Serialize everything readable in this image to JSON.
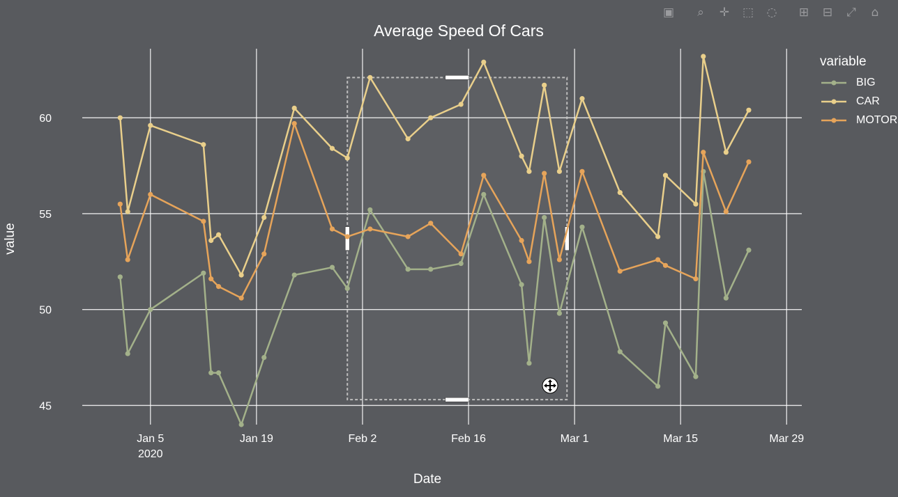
{
  "modebar": {
    "icons": [
      "camera-icon",
      "zoom-icon",
      "pan-icon",
      "box-select-icon",
      "lasso-select-icon",
      "zoom-in-icon",
      "zoom-out-icon",
      "autoscale-icon",
      "reset-axes-home-icon"
    ]
  },
  "colors": {
    "background": "#585a5e",
    "grid": "#ffffff",
    "BIG": "#a3b18a",
    "CAR": "#e9cf8b",
    "MOTOR": "#e6a45a"
  },
  "chart_data": {
    "type": "line",
    "title": "Average Speed Of Cars",
    "xlabel": "Date",
    "ylabel": "value",
    "legend_title": "variable",
    "legend_position": "top-right",
    "grid": true,
    "xlim": [
      "2019-12-27",
      "2020-03-31"
    ],
    "ylim": [
      44.0,
      63.6
    ],
    "x_ticks": [
      {
        "date": "2020-01-05",
        "label": "Jan 5",
        "sublabel": "2020"
      },
      {
        "date": "2020-01-19",
        "label": "Jan 19",
        "sublabel": ""
      },
      {
        "date": "2020-02-02",
        "label": "Feb 2",
        "sublabel": ""
      },
      {
        "date": "2020-02-16",
        "label": "Feb 16",
        "sublabel": ""
      },
      {
        "date": "2020-03-01",
        "label": "Mar 1",
        "sublabel": ""
      },
      {
        "date": "2020-03-15",
        "label": "Mar 15",
        "sublabel": ""
      },
      {
        "date": "2020-03-29",
        "label": "Mar 29",
        "sublabel": ""
      }
    ],
    "y_ticks": [
      45,
      50,
      55,
      60
    ],
    "x": [
      "2020-01-01",
      "2020-01-02",
      "2020-01-05",
      "2020-01-12",
      "2020-01-13",
      "2020-01-14",
      "2020-01-17",
      "2020-01-20",
      "2020-01-24",
      "2020-01-29",
      "2020-01-31",
      "2020-02-03",
      "2020-02-08",
      "2020-02-11",
      "2020-02-15",
      "2020-02-18",
      "2020-02-23",
      "2020-02-24",
      "2020-02-26",
      "2020-02-28",
      "2020-03-02",
      "2020-03-07",
      "2020-03-12",
      "2020-03-13",
      "2020-03-17",
      "2020-03-18",
      "2020-03-21",
      "2020-03-24",
      "2020-03-28"
    ],
    "series": [
      {
        "name": "BIG",
        "values": [
          51.7,
          47.7,
          50.0,
          51.9,
          46.7,
          46.7,
          44.0,
          47.5,
          51.8,
          52.2,
          51.1,
          55.2,
          52.1,
          52.1,
          52.4,
          56.0,
          51.3,
          47.2,
          54.8,
          49.8,
          54.3,
          47.8,
          46.0,
          49.3,
          46.5,
          57.2,
          50.6,
          53.1,
          null
        ]
      },
      {
        "name": "CAR",
        "values": [
          60.0,
          55.1,
          59.6,
          58.6,
          53.6,
          53.9,
          51.8,
          54.8,
          60.5,
          58.4,
          57.9,
          62.1,
          58.9,
          60.0,
          60.7,
          62.9,
          58.0,
          57.2,
          61.7,
          57.2,
          61.0,
          56.1,
          53.8,
          57.0,
          55.5,
          63.2,
          58.2,
          60.4,
          null
        ]
      },
      {
        "name": "MOTOR",
        "values": [
          55.5,
          52.6,
          56.0,
          54.6,
          51.6,
          51.2,
          50.6,
          52.9,
          59.7,
          54.2,
          53.8,
          54.2,
          53.8,
          54.5,
          52.9,
          57.0,
          53.6,
          52.5,
          57.1,
          52.6,
          57.2,
          52.0,
          52.6,
          52.3,
          51.6,
          58.2,
          55.1,
          57.7,
          null
        ]
      }
    ],
    "selection_box": {
      "x0": "2020-01-31",
      "x1": "2020-02-29",
      "y0": 45.3,
      "y1": 62.1
    }
  }
}
